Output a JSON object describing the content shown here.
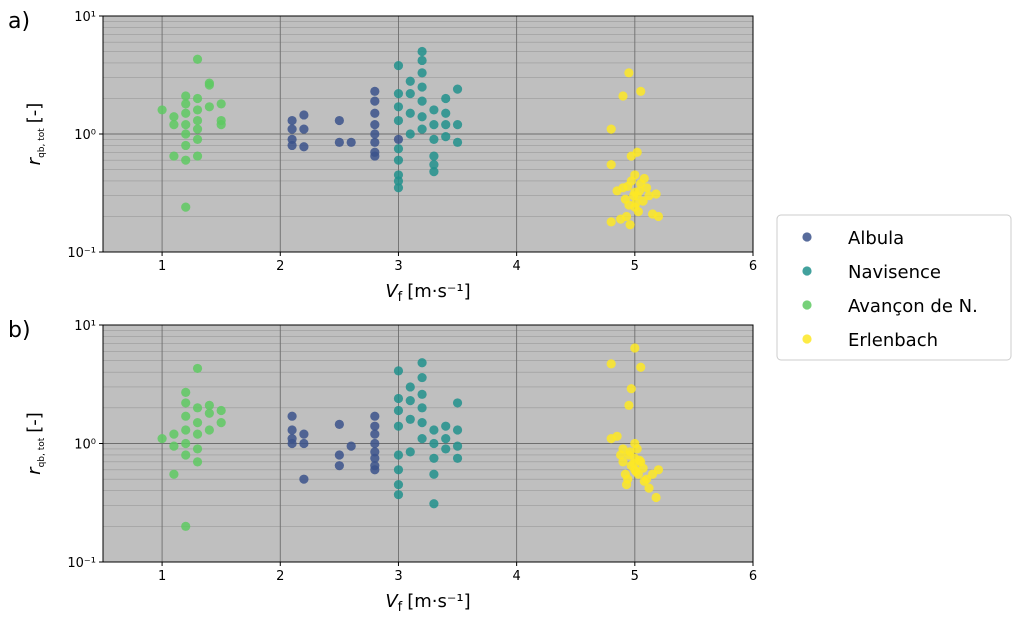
{
  "chart_data": [
    {
      "type": "scatter",
      "panel_label": "a)",
      "log_y": true,
      "grid": true,
      "background": "#bfbfbf",
      "x_label": "V",
      "x_label_sub": "f",
      "x_label_unit": "[m·s⁻¹]",
      "y_label": "r",
      "y_label_sub": "qb, tot",
      "y_label_unit": "[-]",
      "xlim": [
        0.5,
        6
      ],
      "xticks": [
        1,
        2,
        3,
        4,
        5,
        6
      ],
      "ylim": [
        0.1,
        10
      ],
      "yticks": [
        {
          "value": 0.1,
          "label": "10⁻¹"
        },
        {
          "value": 1,
          "label": "10⁰"
        },
        {
          "value": 10,
          "label": "10¹"
        }
      ],
      "series": [
        {
          "name": "Albula",
          "color": "#3b528b",
          "x": [
            2.1,
            2.1,
            2.1,
            2.1,
            2.2,
            2.2,
            2.2,
            2.5,
            2.5,
            2.6,
            2.8,
            2.8,
            2.8,
            2.8,
            2.8,
            2.8,
            2.8,
            2.8,
            3.0
          ],
          "values": [
            1.3,
            1.1,
            0.9,
            0.8,
            1.45,
            1.1,
            0.78,
            1.3,
            0.85,
            0.85,
            2.3,
            1.9,
            1.5,
            1.2,
            1.0,
            0.85,
            0.7,
            0.65,
            0.9
          ]
        },
        {
          "name": "Navisence",
          "color": "#21918c",
          "x": [
            3.0,
            3.0,
            3.0,
            3.0,
            3.0,
            3.0,
            3.0,
            3.0,
            3.0,
            3.1,
            3.1,
            3.1,
            3.1,
            3.2,
            3.2,
            3.2,
            3.2,
            3.2,
            3.2,
            3.2,
            3.3,
            3.3,
            3.3,
            3.3,
            3.3,
            3.3,
            3.4,
            3.4,
            3.4,
            3.4,
            3.5,
            3.5,
            3.5
          ],
          "values": [
            3.8,
            2.2,
            1.7,
            1.3,
            0.75,
            0.6,
            0.45,
            0.4,
            0.35,
            2.8,
            2.2,
            1.5,
            1.0,
            5.0,
            4.2,
            3.3,
            2.5,
            1.9,
            1.4,
            1.1,
            1.6,
            1.2,
            0.9,
            0.65,
            0.55,
            0.48,
            2.0,
            1.5,
            1.2,
            0.95,
            2.4,
            1.2,
            0.85
          ]
        },
        {
          "name": "Avançon de N.",
          "color": "#5ec962",
          "x": [
            1.0,
            1.1,
            1.1,
            1.1,
            1.2,
            1.2,
            1.2,
            1.2,
            1.2,
            1.2,
            1.2,
            1.2,
            1.3,
            1.3,
            1.3,
            1.3,
            1.3,
            1.3,
            1.3,
            1.4,
            1.4,
            1.4,
            1.5,
            1.5,
            1.5
          ],
          "values": [
            1.6,
            1.4,
            1.2,
            0.65,
            2.1,
            1.8,
            1.5,
            1.2,
            1.0,
            0.8,
            0.6,
            0.24,
            4.3,
            2.0,
            1.6,
            1.3,
            1.1,
            0.9,
            0.65,
            2.7,
            2.6,
            1.7,
            1.8,
            1.3,
            1.2
          ]
        },
        {
          "name": "Erlenbach",
          "color": "#fde725",
          "x": [
            4.8,
            4.8,
            4.85,
            4.8,
            4.9,
            4.95,
            5.05,
            4.97,
            5.02,
            4.9,
            4.92,
            4.95,
            4.97,
            5.0,
            5.0,
            5.02,
            5.03,
            5.05,
            5.07,
            5.1,
            4.93,
            4.96,
            4.99,
            5.01,
            5.04,
            5.08,
            5.12,
            5.15,
            5.2,
            5.18,
            4.88,
            4.94,
            5.0
          ],
          "values": [
            1.1,
            0.55,
            0.33,
            0.18,
            2.1,
            3.3,
            2.3,
            0.65,
            0.7,
            0.35,
            0.28,
            0.25,
            0.4,
            0.32,
            0.45,
            0.3,
            0.22,
            0.38,
            0.27,
            0.35,
            0.2,
            0.17,
            0.3,
            0.26,
            0.33,
            0.42,
            0.3,
            0.21,
            0.2,
            0.31,
            0.19,
            0.36,
            0.24
          ]
        }
      ],
      "legend_entries": "right"
    },
    {
      "type": "scatter",
      "panel_label": "b)",
      "log_y": true,
      "grid": true,
      "background": "#bfbfbf",
      "x_label": "V",
      "x_label_sub": "f",
      "x_label_unit": "[m·s⁻¹]",
      "y_label": "r",
      "y_label_sub": "qb, tot",
      "y_label_unit": "[-]",
      "xlim": [
        0.5,
        6
      ],
      "xticks": [
        1,
        2,
        3,
        4,
        5,
        6
      ],
      "ylim": [
        0.1,
        10
      ],
      "yticks": [
        {
          "value": 0.1,
          "label": "10⁻¹"
        },
        {
          "value": 1,
          "label": "10⁰"
        },
        {
          "value": 10,
          "label": "10¹"
        }
      ],
      "series": [
        {
          "color": "#3b528b",
          "x": [
            2.1,
            2.1,
            2.1,
            2.1,
            2.2,
            2.2,
            2.2,
            2.5,
            2.5,
            2.5,
            2.6,
            2.8,
            2.8,
            2.8,
            2.8,
            2.8,
            2.8,
            2.8,
            2.8
          ],
          "values": [
            1.7,
            1.3,
            1.1,
            1.0,
            1.2,
            1.0,
            0.5,
            1.45,
            0.8,
            0.65,
            0.95,
            1.7,
            1.4,
            1.2,
            1.0,
            0.85,
            0.75,
            0.65,
            0.6
          ]
        },
        {
          "color": "#21918c",
          "x": [
            3.0,
            3.0,
            3.0,
            3.0,
            3.0,
            3.0,
            3.0,
            3.0,
            3.1,
            3.1,
            3.1,
            3.1,
            3.2,
            3.2,
            3.2,
            3.2,
            3.2,
            3.2,
            3.3,
            3.3,
            3.3,
            3.3,
            3.3,
            3.4,
            3.4,
            3.4,
            3.5,
            3.5,
            3.5,
            3.5
          ],
          "values": [
            4.1,
            2.4,
            1.9,
            1.4,
            0.8,
            0.6,
            0.45,
            0.37,
            3.0,
            2.3,
            1.6,
            0.85,
            4.8,
            3.6,
            2.6,
            2.0,
            1.5,
            1.1,
            1.3,
            1.0,
            0.75,
            0.55,
            0.31,
            1.4,
            1.1,
            0.9,
            2.2,
            1.3,
            0.95,
            0.75
          ]
        },
        {
          "color": "#5ec962",
          "x": [
            1.0,
            1.1,
            1.1,
            1.1,
            1.2,
            1.2,
            1.2,
            1.2,
            1.2,
            1.2,
            1.2,
            1.3,
            1.3,
            1.3,
            1.3,
            1.3,
            1.3,
            1.4,
            1.4,
            1.4,
            1.5,
            1.5
          ],
          "values": [
            1.1,
            1.2,
            0.95,
            0.55,
            2.7,
            2.2,
            1.7,
            1.3,
            1.0,
            0.8,
            0.2,
            4.3,
            2.0,
            1.5,
            1.2,
            0.9,
            0.7,
            2.1,
            1.8,
            1.3,
            1.9,
            1.5
          ]
        },
        {
          "color": "#fde725",
          "x": [
            4.8,
            4.8,
            4.85,
            4.9,
            4.95,
            5.0,
            4.97,
            5.05,
            4.9,
            4.92,
            4.95,
            4.97,
            5.0,
            5.0,
            5.02,
            5.03,
            5.05,
            5.07,
            5.1,
            4.93,
            4.96,
            4.99,
            5.01,
            5.04,
            5.08,
            5.12,
            5.15,
            5.2,
            5.18,
            4.88,
            4.94,
            5.0
          ],
          "values": [
            4.7,
            1.1,
            1.15,
            0.9,
            2.1,
            6.4,
            2.9,
            4.4,
            0.7,
            0.55,
            0.8,
            0.65,
            0.6,
            0.75,
            0.9,
            0.55,
            0.7,
            0.62,
            0.5,
            0.45,
            0.85,
            0.68,
            0.58,
            0.72,
            0.48,
            0.42,
            0.55,
            0.6,
            0.35,
            0.8,
            0.5,
            1.0
          ]
        }
      ]
    }
  ]
}
